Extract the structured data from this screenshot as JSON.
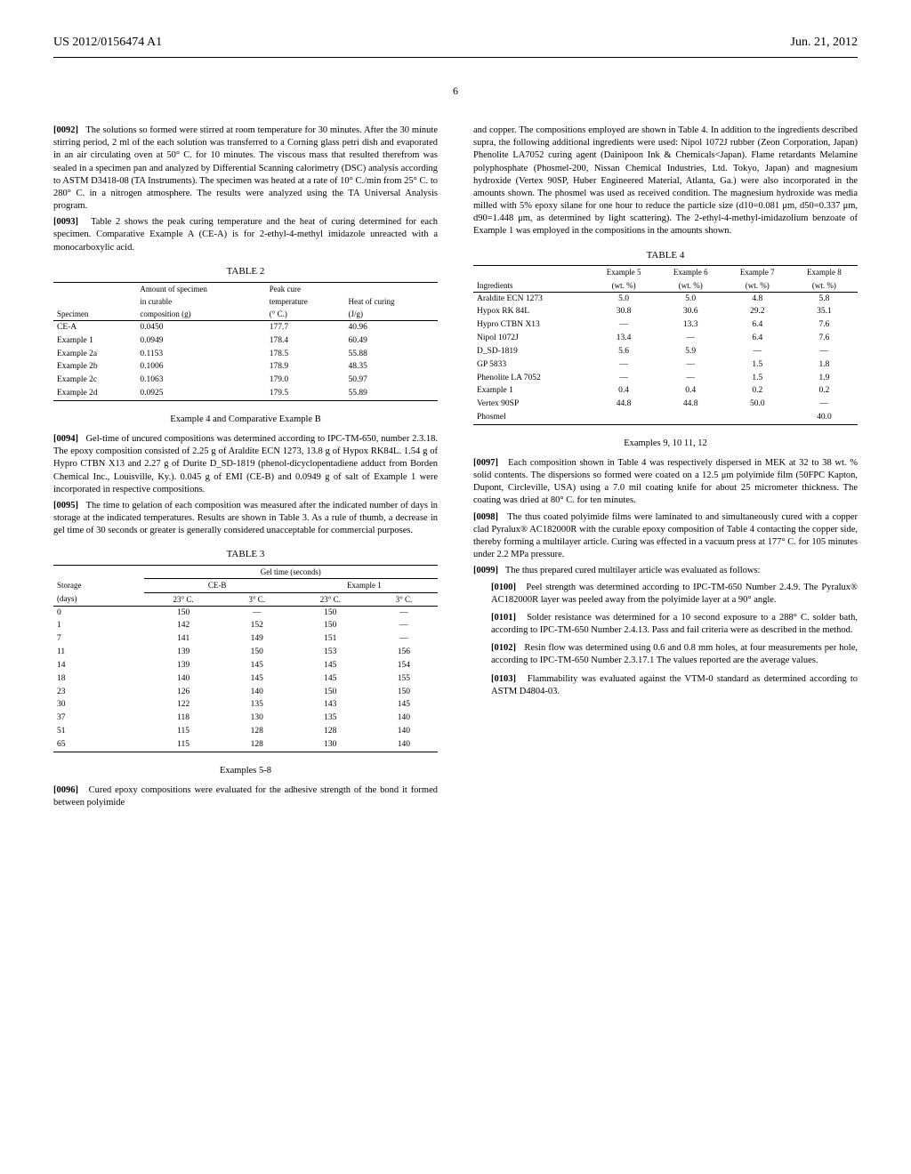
{
  "header": {
    "pubNumber": "US 2012/0156474 A1",
    "date": "Jun. 21, 2012",
    "pageNumber": "6"
  },
  "col1": {
    "p0092": "The solutions so formed were stirred at room temperature for 30 minutes. After the 30 minute stirring period, 2 ml of the each solution was transferred to a Corning glass petri dish and evaporated in an air circulating oven at 50° C. for 10 minutes. The viscous mass that resulted therefrom was sealed in a specimen pan and analyzed by Differential Scanning calorimetry (DSC) analysis according to ASTM D3418-08 (TA Instruments). The specimen was heated at a rate of 10° C./min from 25° C. to 280° C. in a nitrogen atmosphere. The results were analyzed using the TA Universal Analysis program.",
    "p0092_num": "[0092]",
    "p0093": "Table 2 shows the peak curing temperature and the heat of curing determined for each specimen. Comparative Example A (CE-A) is for 2-ethyl-4-methyl imidazole unreacted with a monocarboxylic acid.",
    "p0093_num": "[0093]",
    "table2_caption": "TABLE 2",
    "table2_headers": {
      "h1": "Specimen",
      "h2a": "Amount of specimen",
      "h2b": "in curable",
      "h2c": "composition (g)",
      "h3a": "Peak cure",
      "h3b": "temperature",
      "h3c": "(° C.)",
      "h4a": "Heat of curing",
      "h4b": "(J/g)"
    },
    "table2_rows": [
      {
        "c1": "CE-A",
        "c2": "0.0450",
        "c3": "177.7",
        "c4": "40.96"
      },
      {
        "c1": "Example 1",
        "c2": "0.0949",
        "c3": "178.4",
        "c4": "60.49"
      },
      {
        "c1": "Example 2a",
        "c2": "0.1153",
        "c3": "178.5",
        "c4": "55.88"
      },
      {
        "c1": "Example 2b",
        "c2": "0.1006",
        "c3": "178.9",
        "c4": "48.35"
      },
      {
        "c1": "Example 2c",
        "c2": "0.1063",
        "c3": "179.0",
        "c4": "50.97"
      },
      {
        "c1": "Example 2d",
        "c2": "0.0925",
        "c3": "179.5",
        "c4": "55.89"
      }
    ],
    "ex4_title": "Example 4 and Comparative Example B",
    "p0094": "Gel-time of uncured compositions was determined according to IPC-TM-650, number 2.3.18. The epoxy composition consisted of 2.25 g of Araldite ECN 1273, 13.8 g of Hypox RK84L. 1.54 g of Hypro CTBN X13 and 2.27 g of Durite D_SD-1819 (phenol-dicyclopentadiene adduct from Borden Chemical Inc., Louisville, Ky.). 0.045 g of EMI (CE-B) and 0.0949 g of salt of Example 1 were incorporated in respective compositions.",
    "p0094_num": "[0094]",
    "p0095": "The time to gelation of each composition was measured after the indicated number of days in storage at the indicated temperatures. Results are shown in Table 3. As a rule of thumb, a decrease in gel time of 30 seconds or greater is generally considered unacceptable for commercial purposes.",
    "p0095_num": "[0095]",
    "table3_caption": "TABLE 3",
    "table3_headers": {
      "gel": "Gel time (seconds)",
      "storage": "Storage",
      "days": "(days)",
      "ceb": "CE-B",
      "ex1": "Example 1",
      "t23": "23° C.",
      "t3": "3° C."
    },
    "table3_rows": [
      {
        "d": "0",
        "a": "150",
        "b": "—",
        "c": "150",
        "e": "—"
      },
      {
        "d": "1",
        "a": "142",
        "b": "152",
        "c": "150",
        "e": "—"
      },
      {
        "d": "7",
        "a": "141",
        "b": "149",
        "c": "151",
        "e": "—"
      },
      {
        "d": "11",
        "a": "139",
        "b": "150",
        "c": "153",
        "e": "156"
      },
      {
        "d": "14",
        "a": "139",
        "b": "145",
        "c": "145",
        "e": "154"
      },
      {
        "d": "18",
        "a": "140",
        "b": "145",
        "c": "145",
        "e": "155"
      },
      {
        "d": "23",
        "a": "126",
        "b": "140",
        "c": "150",
        "e": "150"
      },
      {
        "d": "30",
        "a": "122",
        "b": "135",
        "c": "143",
        "e": "145"
      },
      {
        "d": "37",
        "a": "118",
        "b": "130",
        "c": "135",
        "e": "140"
      },
      {
        "d": "51",
        "a": "115",
        "b": "128",
        "c": "128",
        "e": "140"
      },
      {
        "d": "65",
        "a": "115",
        "b": "128",
        "c": "130",
        "e": "140"
      }
    ],
    "ex58_title": "Examples 5-8",
    "p0096": "Cured epoxy compositions were evaluated for the adhesive strength of the bond it formed between polyimide",
    "p0096_num": "[0096]"
  },
  "col2": {
    "p_cont": "and copper. The compositions employed are shown in Table 4. In addition to the ingredients described supra, the following additional ingredients were used: Nipol 1072J rubber (Zeon Corporation, Japan) Phenolite LA7052 curing agent (Dainipoon Ink & Chemicals<Japan). Flame retardants Melamine polyphosphate (Phosmel-200, Nissan Chemical Industries, Ltd. Tokyo, Japan) and magnesium hydroxide (Vertex 90SP, Huber Engineered Material, Atlanta, Ga.) were also incorporated in the amounts shown. The phosmel was used as received condition. The magnesium hydroxide was media milled with 5% epoxy silane for one hour to reduce the particle size (d10=0.081 μm, d50=0.337 μm, d90=1.448 μm, as determined by light scattering). The 2-ethyl-4-methyl-imidazolium benzoate of Example 1 was employed in the compositions in the amounts shown.",
    "table4_caption": "TABLE 4",
    "table4_headers": {
      "ing": "Ingredients",
      "e5a": "Example 5",
      "e5b": "(wt. %)",
      "e6a": "Example 6",
      "e6b": "(wt. %)",
      "e7a": "Example 7",
      "e7b": "(wt. %)",
      "e8a": "Example 8",
      "e8b": "(wt. %)"
    },
    "table4_rows": [
      {
        "n": "Araldite ECN 1273",
        "a": "5.0",
        "b": "5.0",
        "c": "4.8",
        "d": "5.8"
      },
      {
        "n": "Hypox RK 84L",
        "a": "30.8",
        "b": "30.6",
        "c": "29.2",
        "d": "35.1"
      },
      {
        "n": "Hypro CTBN X13",
        "a": "—",
        "b": "13.3",
        "c": "6.4",
        "d": "7.6"
      },
      {
        "n": "Nipol 1072J",
        "a": "13.4",
        "b": "—",
        "c": "6.4",
        "d": "7.6"
      },
      {
        "n": "D_SD-1819",
        "a": "5.6",
        "b": "5.9",
        "c": "—",
        "d": "—"
      },
      {
        "n": "GP 5833",
        "a": "—",
        "b": "—",
        "c": "1.5",
        "d": "1.8"
      },
      {
        "n": "Phenolite LA 7052",
        "a": "—",
        "b": "—",
        "c": "1.5",
        "d": "1.9"
      },
      {
        "n": "Example 1",
        "a": "0.4",
        "b": "0.4",
        "c": "0.2",
        "d": "0.2"
      },
      {
        "n": "Vertex 90SP",
        "a": "44.8",
        "b": "44.8",
        "c": "50.0",
        "d": "—"
      },
      {
        "n": "Phosmel",
        "a": "",
        "b": "",
        "c": "",
        "d": "40.0"
      }
    ],
    "ex912_title": "Examples 9, 10 11, 12",
    "p0097": "Each composition shown in Table 4 was respectively dispersed in MEK at 32 to 38 wt. % solid contents. The dispersions so formed were coated on a 12.5 μm polyimide film (50FPC Kapton, Dupont, Circleville, USA) using a 7.0 mil coating knife for about 25 micrometer thickness. The coating was dried at 80° C. for ten minutes.",
    "p0097_num": "[0097]",
    "p0098": "The thus coated polyimide films were laminated to and simultaneously cured with a copper clad Pyralux® AC182000R with the curable epoxy composition of Table 4 contacting the copper side, thereby forming a multilayer article. Curing was effected in a vacuum press at 177° C. for 105 minutes under 2.2 MPa pressure.",
    "p0098_num": "[0098]",
    "p0099": "The thus prepared cured multilayer article was evaluated as follows:",
    "p0099_num": "[0099]",
    "p0100": "Peel strength was determined according to IPC-TM-650 Number 2.4.9. The Pyralux® AC182000R layer was peeled away from the polyimide layer at a 90° angle.",
    "p0100_num": "[0100]",
    "p0101": "Solder resistance was determined for a 10 second exposure to a 288° C. solder bath, according to IPC-TM-650 Number 2.4.13. Pass and fail criteria were as described in the method.",
    "p0101_num": "[0101]",
    "p0102": "Resin flow was determined using 0.6 and 0.8 mm holes, at four measurements per hole, according to IPC-TM-650 Number 2.3.17.1 The values reported are the average values.",
    "p0102_num": "[0102]",
    "p0103": "Flammability was evaluated against the VTM-0 standard as determined according to ASTM D4804-03.",
    "p0103_num": "[0103]"
  }
}
